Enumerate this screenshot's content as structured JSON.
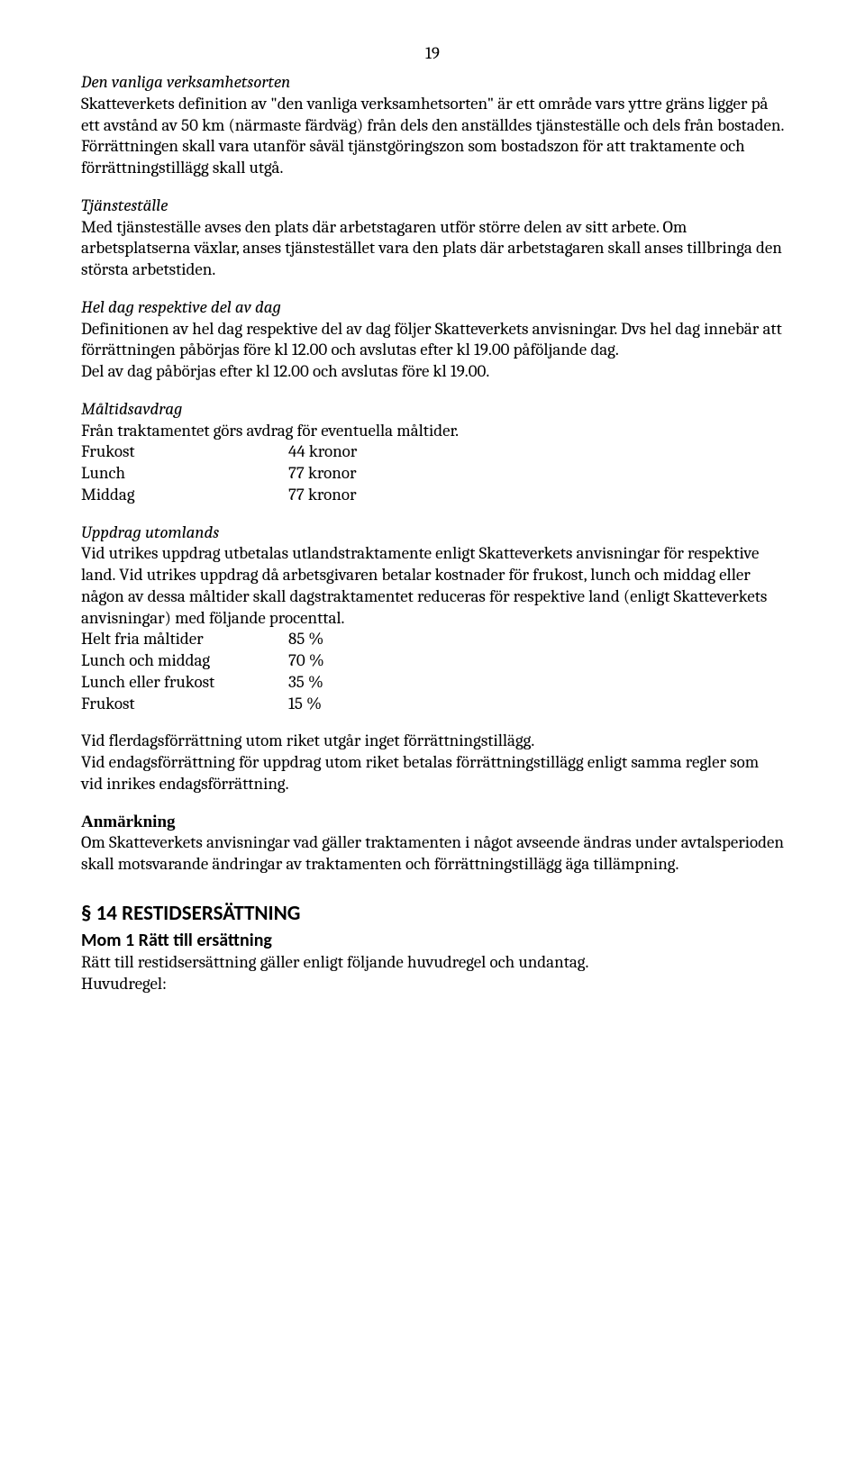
{
  "page_number": "19",
  "s1": {
    "head": "Den vanliga verksamhetsorten",
    "body": "Skatteverkets definition av \"den vanliga verksamhetsorten\" är ett område vars yttre gräns ligger på ett avstånd av 50 km (närmaste färdväg) från dels den anställdes tjänsteställe och dels från bostaden. Förrättningen skall vara utanför såväl tjänstgöringszon som bostadszon för att traktamente och förrättningstillägg skall utgå."
  },
  "s2": {
    "head": "Tjänsteställe",
    "body": "Med tjänsteställe avses den plats där arbetstagaren utför större delen av sitt arbete. Om arbetsplatserna växlar, anses tjänstestället vara den plats där arbetstagaren skall anses tillbringa den största arbetstiden."
  },
  "s3": {
    "head": "Hel dag respektive del av dag",
    "body1": "Definitionen av hel dag respektive del av dag följer Skatteverkets anvisningar. Dvs hel dag innebär att förrättningen påbörjas före kl 12.00 och avslutas efter kl 19.00 påföljande dag.",
    "body2": "Del av dag påbörjas efter kl 12.00 och avslutas före kl 19.00."
  },
  "s4": {
    "head": "Måltidsavdrag",
    "body": "Från traktamentet görs avdrag för eventuella måltider.",
    "rows": [
      {
        "k": "Frukost",
        "v": "44 kronor"
      },
      {
        "k": "Lunch",
        "v": "77 kronor"
      },
      {
        "k": "Middag",
        "v": "77 kronor"
      }
    ]
  },
  "s5": {
    "head": "Uppdrag utomlands",
    "body": "Vid utrikes uppdrag utbetalas utlandstraktamente enligt Skatteverkets anvisningar för respektive land. Vid utrikes uppdrag då arbetsgivaren betalar kostnader för frukost, lunch och middag eller någon av dessa måltider skall dagstraktamentet reduceras för respektive land (enligt Skatteverkets anvisningar) med följande procenttal.",
    "rows": [
      {
        "k": "Helt fria måltider",
        "v": "85 %"
      },
      {
        "k": "Lunch och middag",
        "v": "70 %"
      },
      {
        "k": "Lunch eller frukost",
        "v": "35 %"
      },
      {
        "k": "Frukost",
        "v": "15 %"
      }
    ]
  },
  "s6": {
    "l1": "Vid flerdagsförrättning utom riket utgår inget förrättningstillägg.",
    "l2": "Vid endagsförrättning för uppdrag utom riket betalas förrättningstillägg enligt samma regler som vid inrikes endagsförrättning."
  },
  "anm": {
    "head": "Anmärkning",
    "body": "Om Skatteverkets anvisningar vad gäller traktamenten i något avseende ändras under avtalsperioden skall motsvarande ändringar av traktamenten och förrättningstillägg äga tillämpning."
  },
  "s14": {
    "title": "§ 14 RESTIDSERSÄTTNING",
    "mom1_title": "Mom 1 Rätt till ersättning",
    "mom1_body": "Rätt till restidsersättning gäller enligt följande huvudregel och undantag.",
    "mom1_lead": "Huvudregel:"
  }
}
